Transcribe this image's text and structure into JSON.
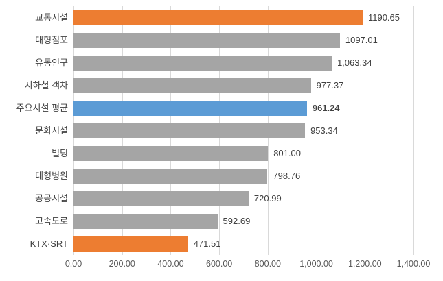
{
  "chart_data": {
    "type": "bar",
    "orientation": "horizontal",
    "title": "",
    "xlabel": "",
    "ylabel": "",
    "legend": "none",
    "grid": "vertical-only",
    "categories": [
      "교통시설",
      "대형점포",
      "유동인구",
      "지하철 객차",
      "주요시설 평균",
      "문화시설",
      "빌딩",
      "대형병원",
      "공공시설",
      "고속도로",
      "KTX·SRT"
    ],
    "values": [
      1190.65,
      1097.01,
      1063.34,
      977.37,
      961.24,
      953.34,
      801.0,
      798.76,
      720.99,
      592.69,
      471.51
    ],
    "value_labels": [
      "1190.65",
      "1097.01",
      "1,063.34",
      "977.37",
      "961.24",
      "953.34",
      "801.00",
      "798.76",
      "720.99",
      "592.69",
      "471.51"
    ],
    "bar_color_keys": [
      "orange",
      "gray",
      "gray",
      "gray",
      "blue",
      "gray",
      "gray",
      "gray",
      "gray",
      "gray",
      "orange"
    ],
    "bold_value_index": 4,
    "xlim": [
      0,
      1400
    ],
    "x_ticks": [
      "0.00",
      "200.00",
      "400.00",
      "600.00",
      "800.00",
      "1,000.00",
      "1,200.00",
      "1,400.00"
    ],
    "colors": {
      "orange": "#ED7D31",
      "gray": "#A5A5A5",
      "blue": "#5B9BD5",
      "gridline": "#D9D9D9",
      "label_text": "#404040",
      "axis_text": "#595959"
    }
  }
}
